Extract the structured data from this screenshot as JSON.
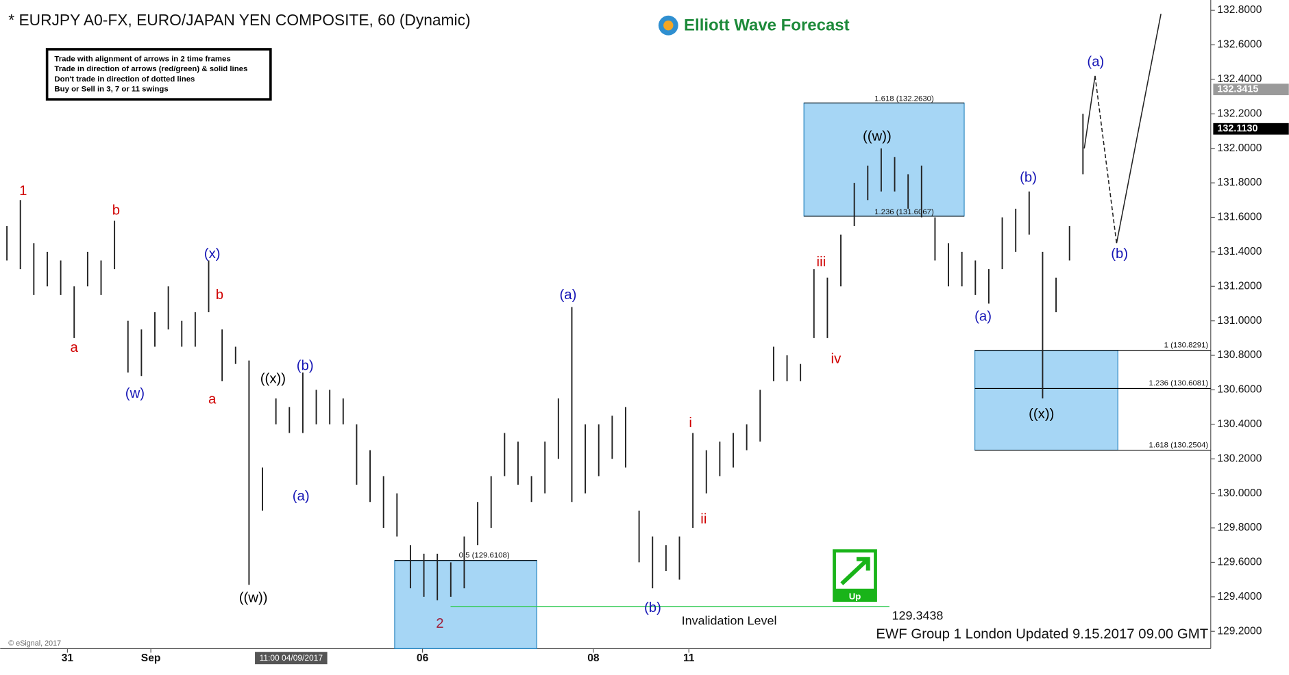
{
  "chart_data": {
    "type": "ohlc",
    "title": "* EURJPY A0-FX, EURO/JAPAN YEN COMPOSITE, 60 (Dynamic)",
    "brand": "Elliott Wave Forecast",
    "rules": [
      "Trade with alignment of arrows in 2 time frames",
      "Trade in direction of arrows (red/green) & solid lines",
      "Don't trade in direction of dotted lines",
      "Buy or Sell in 3, 7 or 11 swings"
    ],
    "footer": "EWF Group 1 London Updated 9.15.2017 09.00 GMT",
    "copyright": "© eSignal, 2017",
    "cursor_label": "11:00 04/09/2017",
    "signal": "Up",
    "color": "#222222",
    "x": [
      0,
      1,
      2,
      3,
      4,
      5,
      6,
      7,
      8,
      9,
      10,
      11,
      12,
      13,
      14,
      15,
      16,
      17,
      18,
      19,
      20,
      21,
      22,
      23,
      24,
      25,
      26,
      27,
      28,
      29,
      30,
      31,
      32,
      33,
      34,
      35,
      36,
      37,
      38,
      39,
      40,
      41,
      42,
      43,
      44,
      45,
      46,
      47,
      48,
      49,
      50,
      51,
      52,
      53,
      54,
      55,
      56,
      57,
      58,
      59,
      60,
      61,
      62,
      63,
      64,
      65,
      66,
      67,
      68,
      69,
      70,
      71,
      72,
      73,
      74,
      75,
      76,
      77,
      78,
      79,
      80
    ],
    "high": [
      131.55,
      131.7,
      131.45,
      131.4,
      131.35,
      131.2,
      131.4,
      131.35,
      131.58,
      131.0,
      130.95,
      131.05,
      131.2,
      131.0,
      131.05,
      131.35,
      130.95,
      130.85,
      130.77,
      130.15,
      130.55,
      130.5,
      130.7,
      130.6,
      130.6,
      130.55,
      130.4,
      130.25,
      130.1,
      130.0,
      129.7,
      129.65,
      129.65,
      129.6,
      129.75,
      129.95,
      130.1,
      130.35,
      130.3,
      130.1,
      130.3,
      130.55,
      131.08,
      130.4,
      130.4,
      130.45,
      130.5,
      129.9,
      129.75,
      129.7,
      129.75,
      130.35,
      130.25,
      130.3,
      130.35,
      130.4,
      130.6,
      130.85,
      130.8,
      130.75,
      131.3,
      131.25,
      131.5,
      131.8,
      131.9,
      132.0,
      131.95,
      131.85,
      131.9,
      131.6,
      131.45,
      131.4,
      131.35,
      131.3,
      131.6,
      131.65,
      131.75,
      131.4,
      131.25,
      131.55,
      132.2
    ],
    "low": [
      131.35,
      131.3,
      131.15,
      131.2,
      131.15,
      130.9,
      131.2,
      131.15,
      131.3,
      130.7,
      130.68,
      130.85,
      130.95,
      130.85,
      130.85,
      131.05,
      130.65,
      130.75,
      129.47,
      129.9,
      130.4,
      130.35,
      130.35,
      130.4,
      130.4,
      130.4,
      130.05,
      129.95,
      129.8,
      129.75,
      129.45,
      129.4,
      129.38,
      129.4,
      129.45,
      129.7,
      129.8,
      130.1,
      130.05,
      129.95,
      130.0,
      130.2,
      129.95,
      130.0,
      130.1,
      130.2,
      130.15,
      129.6,
      129.45,
      129.55,
      129.5,
      129.8,
      130.0,
      130.1,
      130.15,
      130.25,
      130.3,
      130.65,
      130.65,
      130.65,
      130.9,
      130.9,
      131.2,
      131.55,
      131.7,
      131.75,
      131.75,
      131.65,
      131.6,
      131.35,
      131.2,
      131.2,
      131.15,
      131.1,
      131.3,
      131.4,
      131.5,
      130.55,
      131.05,
      131.35,
      131.85
    ],
    "projection": {
      "x": [
        80.1,
        80.9,
        82.5,
        85.8
      ],
      "values": [
        132.0,
        132.42,
        131.45,
        132.78
      ]
    },
    "xlim": [
      -0.5,
      89.5
    ],
    "xticks": [
      {
        "value": 4.5,
        "label": "31"
      },
      {
        "value": 10.7,
        "label": "Sep"
      },
      {
        "value": 30.9,
        "label": "06"
      },
      {
        "value": 43.6,
        "label": "08"
      },
      {
        "value": 50.7,
        "label": "11"
      }
    ],
    "ylim": [
      129.1,
      132.86
    ],
    "yticks": [
      {
        "value": 129.2,
        "label": "129.2000"
      },
      {
        "value": 129.4,
        "label": "129.4000"
      },
      {
        "value": 129.6,
        "label": "129.6000"
      },
      {
        "value": 129.8,
        "label": "129.8000"
      },
      {
        "value": 130.0,
        "label": "130.0000"
      },
      {
        "value": 130.2,
        "label": "130.2000"
      },
      {
        "value": 130.4,
        "label": "130.4000"
      },
      {
        "value": 130.6,
        "label": "130.6000"
      },
      {
        "value": 130.8,
        "label": "130.8000"
      },
      {
        "value": 131.0,
        "label": "131.0000"
      },
      {
        "value": 131.2,
        "label": "131.2000"
      },
      {
        "value": 131.4,
        "label": "131.4000"
      },
      {
        "value": 131.6,
        "label": "131.6000"
      },
      {
        "value": 131.8,
        "label": "131.8000"
      },
      {
        "value": 132.0,
        "label": "132.0000"
      },
      {
        "value": 132.2,
        "label": "132.2000"
      },
      {
        "value": 132.4,
        "label": "132.4000"
      },
      {
        "value": 132.6,
        "label": "132.6000"
      },
      {
        "value": 132.8,
        "label": "132.8000"
      }
    ],
    "price_tags": [
      {
        "value": 132.3415,
        "label": "132.3415",
        "color": "#9a9a9a"
      },
      {
        "value": 132.113,
        "label": "132.1130",
        "color": "#000000"
      }
    ],
    "fib_top": [
      {
        "value": 132.263,
        "label": "1.618 (132.2630)"
      },
      {
        "value": 131.6067,
        "label": "1.236 (131.6067)"
      }
    ],
    "fib_right": [
      {
        "value": 130.8291,
        "label": "1 (130.8291)"
      },
      {
        "value": 130.6081,
        "label": "1.236 (130.6081)"
      },
      {
        "value": 130.2504,
        "label": "1.618 (130.2504)"
      }
    ],
    "fib_left": {
      "value": 129.6108,
      "label": "0.5 (129.6108)"
    },
    "invalidation": {
      "value": 129.3438,
      "label": "129.3438",
      "name": "Invalidation Level"
    },
    "wave_labels": [
      {
        "text": "1",
        "color": "#d00000"
      },
      {
        "text": "b",
        "color": "#d00000"
      },
      {
        "text": "a",
        "color": "#d00000"
      },
      {
        "text": "(w)",
        "color": "#1515b5"
      },
      {
        "text": "(x)",
        "color": "#1515b5"
      },
      {
        "text": "b",
        "color": "#d00000"
      },
      {
        "text": "a",
        "color": "#d00000"
      },
      {
        "text": "((x))",
        "color": "#000000"
      },
      {
        "text": "((w))",
        "color": "#000000"
      },
      {
        "text": "(b)",
        "color": "#1515b5"
      },
      {
        "text": "(a)",
        "color": "#1515b5"
      },
      {
        "text": "2",
        "color": "#a0203a"
      },
      {
        "text": "(a)",
        "color": "#1515b5"
      },
      {
        "text": "(b)",
        "color": "#1515b5"
      },
      {
        "text": "i",
        "color": "#d00000"
      },
      {
        "text": "ii",
        "color": "#d00000"
      },
      {
        "text": "iii",
        "color": "#d00000"
      },
      {
        "text": "iv",
        "color": "#d00000"
      },
      {
        "text": "((w))",
        "color": "#000000"
      },
      {
        "text": "(a)",
        "color": "#1515b5"
      },
      {
        "text": "(b)",
        "color": "#1515b5"
      },
      {
        "text": "((x))",
        "color": "#000000"
      },
      {
        "text": "(a)",
        "color": "#1515b5"
      },
      {
        "text": "(b)",
        "color": "#1515b5"
      }
    ]
  }
}
